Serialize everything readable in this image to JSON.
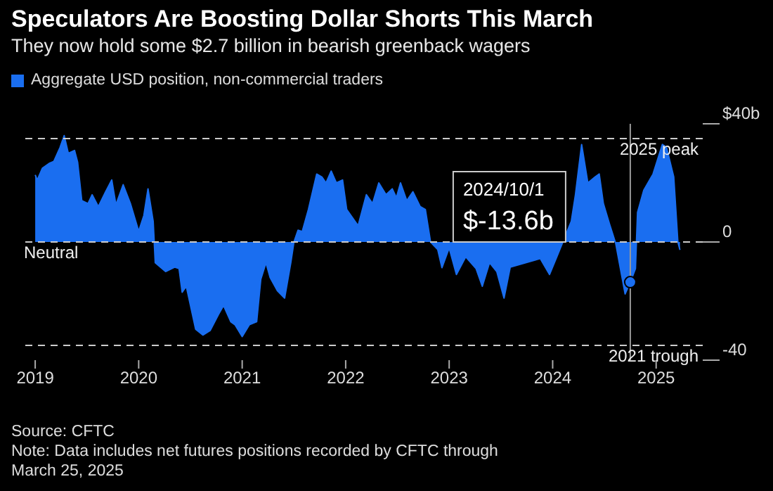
{
  "chart_data": {
    "type": "area",
    "title": "Speculators Are Boosting Dollar Shorts This March",
    "subtitle": "They now hold some $2.7 billion in bearish greenback wagers",
    "x": [
      2019.0,
      2019.02,
      2019.07,
      2019.14,
      2019.18,
      2019.24,
      2019.28,
      2019.32,
      2019.38,
      2019.41,
      2019.45,
      2019.51,
      2019.55,
      2019.61,
      2019.68,
      2019.74,
      2019.78,
      2019.85,
      2019.92,
      2020.0,
      2020.05,
      2020.09,
      2020.14,
      2020.15,
      2020.16,
      2020.26,
      2020.35,
      2020.39,
      2020.42,
      2020.46,
      2020.55,
      2020.62,
      2020.69,
      2020.77,
      2020.82,
      2020.89,
      2020.93,
      2021.0,
      2021.07,
      2021.14,
      2021.18,
      2021.23,
      2021.27,
      2021.34,
      2021.41,
      2021.47,
      2021.5,
      2021.54,
      2021.58,
      2021.64,
      2021.72,
      2021.77,
      2021.81,
      2021.86,
      2021.91,
      2021.97,
      2022.01,
      2022.12,
      2022.2,
      2022.26,
      2022.32,
      2022.39,
      2022.45,
      2022.49,
      2022.53,
      2022.59,
      2022.65,
      2022.72,
      2022.77,
      2022.82,
      2022.89,
      2022.93,
      2023.0,
      2023.07,
      2023.16,
      2023.26,
      2023.32,
      2023.39,
      2023.46,
      2023.53,
      2023.59,
      2023.66,
      2023.74,
      2023.81,
      2023.88,
      2023.97,
      2024.04,
      2024.18,
      2024.22,
      2024.28,
      2024.34,
      2024.41,
      2024.45,
      2024.49,
      2024.55,
      2024.61,
      2024.7,
      2024.75,
      2024.8,
      2024.82,
      2024.88,
      2024.97,
      2025.06,
      2025.1,
      2025.17,
      2025.21,
      2025.23
    ],
    "series": [
      {
        "name": "Aggregate USD position, non-commercial traders",
        "color": "#1a6ef0",
        "values": [
          22.7,
          21,
          25,
          26.7,
          27.3,
          32,
          36,
          30,
          31,
          27,
          14,
          13,
          16,
          12,
          17,
          21,
          12.6,
          19.4,
          13,
          3.6,
          9,
          18,
          7,
          0,
          -7,
          -10,
          -8.5,
          -9,
          -17,
          -15,
          -29.5,
          -31.5,
          -30,
          -24.6,
          -21.5,
          -27,
          -28,
          -32,
          -28,
          -27,
          -12.6,
          -7,
          -12,
          -16.5,
          -19,
          -7,
          0,
          4,
          3.5,
          11,
          23,
          22,
          20,
          24,
          20,
          21,
          11,
          5.5,
          16,
          13,
          20,
          16,
          18,
          15,
          20,
          14,
          17,
          12,
          11,
          0,
          -2.6,
          -8.7,
          -2,
          -11,
          -5,
          -9,
          -15,
          -7,
          -10,
          -19,
          -8.5,
          null,
          null,
          null,
          -5.6,
          -11,
          -5,
          7,
          16,
          33,
          20,
          22,
          23,
          13,
          6,
          -0.6,
          -17.6,
          -13.6,
          -9,
          10,
          17.5,
          23,
          33,
          32,
          22,
          0,
          -2.7
        ]
      }
    ],
    "xlim": [
      2018.85,
      2025.45
    ],
    "xticks": [
      2019,
      2020,
      2021,
      2022,
      2023,
      2024,
      2025
    ],
    "ylim": [
      -40,
      40
    ],
    "yticks": [
      {
        "value": 40,
        "label": "$40b"
      },
      0,
      -40
    ],
    "ref_lines": [
      {
        "axis": "y",
        "value": 35,
        "label": "2025 peak",
        "color": "#cccccc",
        "line_style": "dashed"
      },
      {
        "axis": "y",
        "value": 0,
        "label": "Neutral",
        "color": "#cccccc",
        "line_style": "dashed"
      },
      {
        "axis": "y",
        "value": -35,
        "label": "2021 trough",
        "color": "#cccccc",
        "line_style": "dashed"
      },
      {
        "axis": "x",
        "value": 2024.75,
        "label": "2024/10/1\n$-13.6b",
        "color": "#999999",
        "line_style": "solid"
      }
    ],
    "annotations": [
      "Source: CFTC",
      "Note: Data includes net futures positions recorded by CFTC through March 25, 2025"
    ],
    "legend": "top left",
    "grid": false
  }
}
